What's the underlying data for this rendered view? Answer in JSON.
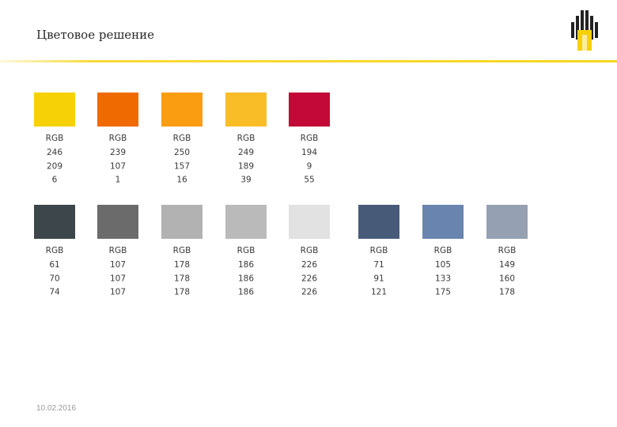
{
  "header": {
    "title": "Цветовое решение"
  },
  "palettes": [
    {
      "swatches": [
        {
          "label": "RGB",
          "rgb": [
            246,
            209,
            6
          ]
        },
        {
          "label": "RGB",
          "rgb": [
            239,
            107,
            1
          ]
        },
        {
          "label": "RGB",
          "rgb": [
            250,
            157,
            16
          ]
        },
        {
          "label": "RGB",
          "rgb": [
            249,
            189,
            39
          ]
        },
        {
          "label": "RGB",
          "rgb": [
            194,
            9,
            55
          ]
        }
      ]
    },
    {
      "swatches": [
        {
          "label": "RGB",
          "rgb": [
            61,
            70,
            74
          ]
        },
        {
          "label": "RGB",
          "rgb": [
            107,
            107,
            107
          ]
        },
        {
          "label": "RGB",
          "rgb": [
            178,
            178,
            178
          ]
        },
        {
          "label": "RGB",
          "rgb": [
            186,
            186,
            186
          ]
        },
        {
          "label": "RGB",
          "rgb": [
            226,
            226,
            226
          ]
        },
        {
          "label": "RGB",
          "rgb": [
            71,
            91,
            121
          ]
        },
        {
          "label": "RGB",
          "rgb": [
            105,
            133,
            175
          ]
        },
        {
          "label": "RGB",
          "rgb": [
            149,
            160,
            178
          ]
        }
      ]
    }
  ],
  "footer": {
    "date": "10.02.2016"
  }
}
